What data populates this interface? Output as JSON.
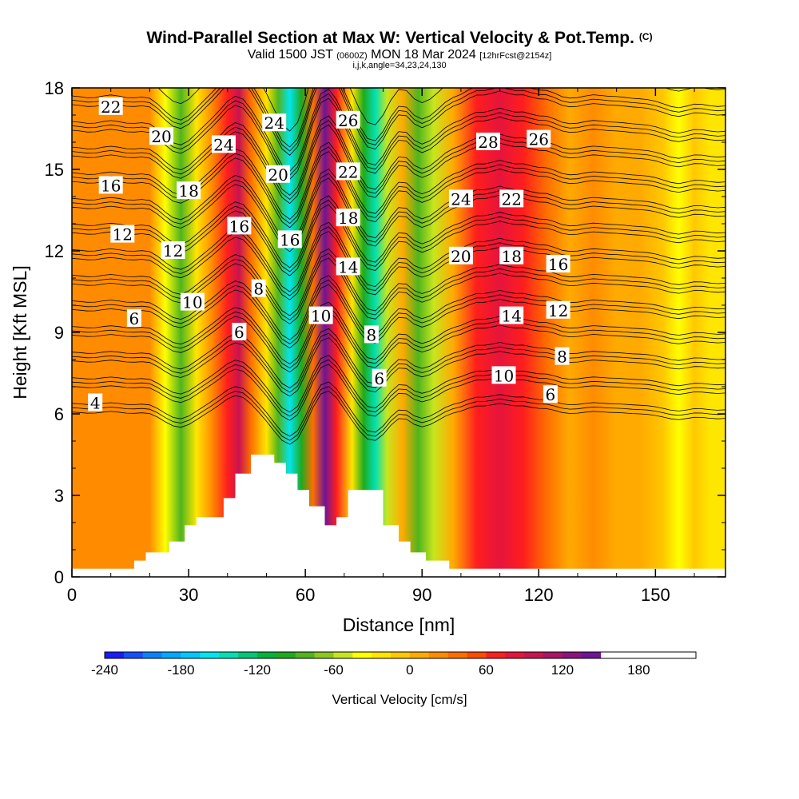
{
  "header": {
    "title": "Wind-Parallel Section at Max W: Vertical Velocity & Pot.Temp.",
    "title_mark": "(C)",
    "valid_prefix": "Valid 1500 JST",
    "valid_utc": "(0600Z)",
    "valid_date": "MON 18 Mar 2024",
    "forecast": "[12hrFcst@2154z]",
    "indices": "i,j,k,angle=34,23,24,130"
  },
  "chart_data": {
    "type": "heatmap",
    "xlabel": "Distance [nm]",
    "ylabel": "Height [Kft MSL]",
    "xlim": [
      0,
      168
    ],
    "ylim": [
      0,
      18
    ],
    "xticks": [
      0,
      30,
      60,
      90,
      120,
      150
    ],
    "yticks": [
      0,
      3,
      6,
      9,
      12,
      15,
      18
    ],
    "colorbar": {
      "label": "Vertical Velocity [cm/s]",
      "ticks": [
        -240,
        -180,
        -120,
        -60,
        0,
        60,
        120,
        180
      ],
      "min": -240,
      "max": 210,
      "step": 15,
      "colors": [
        "#1a1aff",
        "#1450ff",
        "#0a82ff",
        "#00aaff",
        "#00c8ff",
        "#00e6f0",
        "#00e0b4",
        "#00c878",
        "#00b43c",
        "#1eaa1e",
        "#50b41e",
        "#8cc81e",
        "#c8e61e",
        "#ffff00",
        "#ffe600",
        "#ffc800",
        "#ffaa00",
        "#ff8c00",
        "#ff6e00",
        "#ff4b00",
        "#ff1e1e",
        "#e6143c",
        "#c81450",
        "#aa1464",
        "#8c147d",
        "#6e1496"
      ]
    },
    "velocity_columns": [
      {
        "x": 0,
        "value": 15
      },
      {
        "x": 10,
        "value": 20
      },
      {
        "x": 20,
        "value": 15
      },
      {
        "x": 24,
        "value": -45
      },
      {
        "x": 28,
        "value": -90
      },
      {
        "x": 32,
        "value": -30
      },
      {
        "x": 36,
        "value": 20
      },
      {
        "x": 40,
        "value": 70
      },
      {
        "x": 43,
        "value": 95
      },
      {
        "x": 46,
        "value": 40
      },
      {
        "x": 50,
        "value": -20
      },
      {
        "x": 53,
        "value": -90
      },
      {
        "x": 56,
        "value": -160
      },
      {
        "x": 59,
        "value": -100
      },
      {
        "x": 62,
        "value": 40
      },
      {
        "x": 65,
        "value": 140
      },
      {
        "x": 68,
        "value": 70
      },
      {
        "x": 72,
        "value": -20
      },
      {
        "x": 75,
        "value": -100
      },
      {
        "x": 78,
        "value": -140
      },
      {
        "x": 81,
        "value": -60
      },
      {
        "x": 85,
        "value": 10
      },
      {
        "x": 89,
        "value": -90
      },
      {
        "x": 93,
        "value": -50
      },
      {
        "x": 98,
        "value": 10
      },
      {
        "x": 104,
        "value": 60
      },
      {
        "x": 110,
        "value": 80
      },
      {
        "x": 116,
        "value": 60
      },
      {
        "x": 122,
        "value": 40
      },
      {
        "x": 128,
        "value": 0
      },
      {
        "x": 134,
        "value": 20
      },
      {
        "x": 140,
        "value": 10
      },
      {
        "x": 146,
        "value": 0
      },
      {
        "x": 152,
        "value": -15
      },
      {
        "x": 156,
        "value": -40
      },
      {
        "x": 160,
        "value": -10
      },
      {
        "x": 164,
        "value": -25
      },
      {
        "x": 168,
        "value": -30
      }
    ],
    "terrain": [
      [
        0,
        0.3
      ],
      [
        16,
        0.3
      ],
      [
        16,
        0.6
      ],
      [
        19,
        0.6
      ],
      [
        19,
        0.9
      ],
      [
        25,
        0.9
      ],
      [
        25,
        1.3
      ],
      [
        29,
        1.3
      ],
      [
        29,
        1.9
      ],
      [
        32,
        1.9
      ],
      [
        32,
        2.2
      ],
      [
        39,
        2.2
      ],
      [
        39,
        2.9
      ],
      [
        42,
        2.9
      ],
      [
        42,
        3.8
      ],
      [
        46,
        3.8
      ],
      [
        46,
        4.5
      ],
      [
        52,
        4.5
      ],
      [
        52,
        4.2
      ],
      [
        55,
        4.2
      ],
      [
        55,
        3.8
      ],
      [
        58,
        3.8
      ],
      [
        58,
        3.2
      ],
      [
        61,
        3.2
      ],
      [
        61,
        2.6
      ],
      [
        65,
        2.6
      ],
      [
        65,
        1.9
      ],
      [
        68,
        1.9
      ],
      [
        68,
        2.2
      ],
      [
        71,
        2.2
      ],
      [
        71,
        3.2
      ],
      [
        80,
        3.2
      ],
      [
        80,
        1.9
      ],
      [
        84,
        1.9
      ],
      [
        84,
        1.3
      ],
      [
        87,
        1.3
      ],
      [
        87,
        0.9
      ],
      [
        91,
        0.9
      ],
      [
        91,
        0.6
      ],
      [
        97,
        0.6
      ],
      [
        97,
        0.3
      ],
      [
        168,
        0.3
      ]
    ],
    "theta_contours": {
      "interval": 2,
      "labels": [
        {
          "text": "22",
          "x": 10,
          "y": 17.3
        },
        {
          "text": "20",
          "x": 23,
          "y": 16.2
        },
        {
          "text": "24",
          "x": 39,
          "y": 15.9
        },
        {
          "text": "24",
          "x": 52,
          "y": 16.7
        },
        {
          "text": "26",
          "x": 71,
          "y": 16.8
        },
        {
          "text": "28",
          "x": 107,
          "y": 16.0
        },
        {
          "text": "26",
          "x": 120,
          "y": 16.1
        },
        {
          "text": "16",
          "x": 10,
          "y": 14.4
        },
        {
          "text": "18",
          "x": 30,
          "y": 14.2
        },
        {
          "text": "20",
          "x": 53,
          "y": 14.8
        },
        {
          "text": "22",
          "x": 71,
          "y": 14.9
        },
        {
          "text": "24",
          "x": 100,
          "y": 13.9
        },
        {
          "text": "22",
          "x": 113,
          "y": 13.9
        },
        {
          "text": "12",
          "x": 13,
          "y": 12.6
        },
        {
          "text": "12",
          "x": 26,
          "y": 12.0
        },
        {
          "text": "16",
          "x": 43,
          "y": 12.9
        },
        {
          "text": "16",
          "x": 56,
          "y": 12.4
        },
        {
          "text": "18",
          "x": 71,
          "y": 13.2
        },
        {
          "text": "20",
          "x": 100,
          "y": 11.8
        },
        {
          "text": "18",
          "x": 113,
          "y": 11.8
        },
        {
          "text": "16",
          "x": 125,
          "y": 11.5
        },
        {
          "text": "14",
          "x": 71,
          "y": 11.4
        },
        {
          "text": "8",
          "x": 48,
          "y": 10.6
        },
        {
          "text": "10",
          "x": 31,
          "y": 10.1
        },
        {
          "text": "10",
          "x": 64,
          "y": 9.6
        },
        {
          "text": "6",
          "x": 16,
          "y": 9.5
        },
        {
          "text": "14",
          "x": 113,
          "y": 9.6
        },
        {
          "text": "12",
          "x": 125,
          "y": 9.8
        },
        {
          "text": "6",
          "x": 43,
          "y": 9.0
        },
        {
          "text": "8",
          "x": 77,
          "y": 8.9
        },
        {
          "text": "8",
          "x": 126,
          "y": 8.1
        },
        {
          "text": "10",
          "x": 111,
          "y": 7.4
        },
        {
          "text": "6",
          "x": 79,
          "y": 7.3
        },
        {
          "text": "6",
          "x": 123,
          "y": 6.7
        },
        {
          "text": "4",
          "x": 6,
          "y": 6.4
        }
      ]
    }
  }
}
